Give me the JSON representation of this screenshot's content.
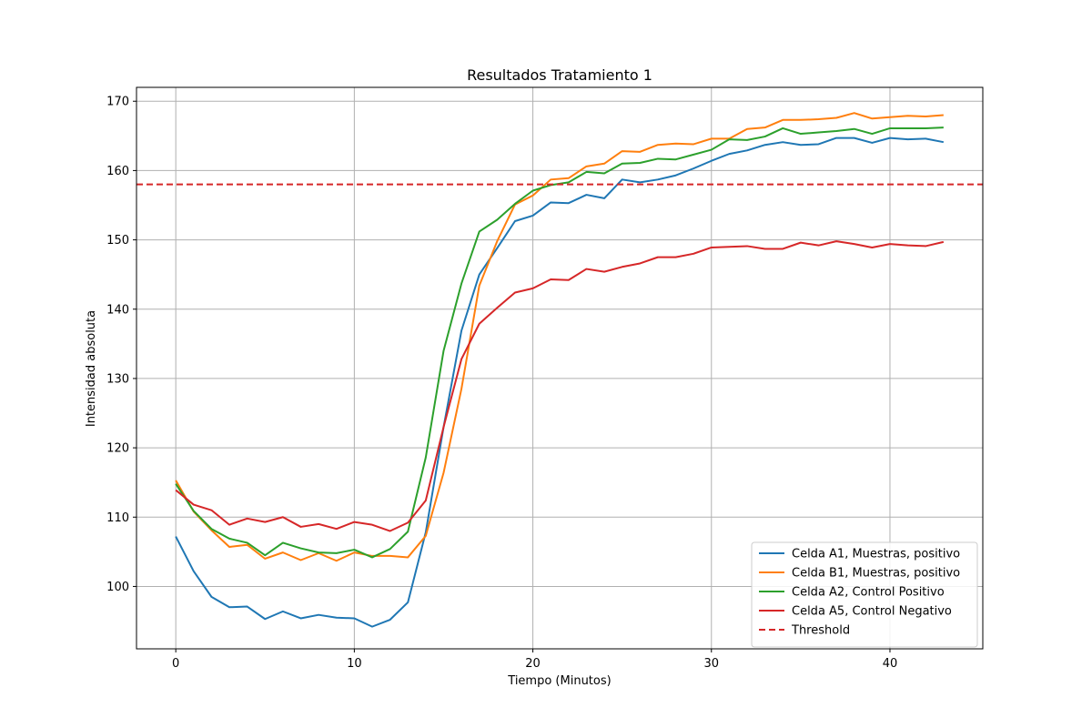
{
  "chart_data": {
    "type": "line",
    "title": "Resultados Tratamiento 1",
    "xlabel": "Tiempo (Minutos)",
    "ylabel": "Intensidad absoluta",
    "xlim": [
      -2.2,
      45.2
    ],
    "ylim": [
      91,
      172
    ],
    "xticks": [
      0,
      10,
      20,
      30,
      40
    ],
    "yticks": [
      100,
      110,
      120,
      130,
      140,
      150,
      160,
      170
    ],
    "grid": true,
    "legend_position": "lower right",
    "x": [
      0,
      1,
      2,
      3,
      4,
      5,
      6,
      7,
      8,
      9,
      10,
      11,
      12,
      13,
      14,
      15,
      16,
      17,
      18,
      19,
      20,
      21,
      22,
      23,
      24,
      25,
      26,
      27,
      28,
      29,
      30,
      31,
      32,
      33,
      34,
      35,
      36,
      37,
      38,
      39,
      40,
      41,
      42,
      43
    ],
    "series": [
      {
        "name": "Celda A1, Muestras, positivo",
        "color": "#1f77b4",
        "style": "solid",
        "values": [
          107.2,
          102.2,
          98.5,
          97.0,
          97.1,
          95.3,
          96.4,
          95.4,
          95.9,
          95.5,
          95.4,
          94.2,
          95.2,
          97.7,
          107.8,
          123.0,
          136.9,
          145.0,
          148.8,
          152.7,
          153.5,
          155.4,
          155.3,
          156.5,
          156.0,
          158.7,
          158.3,
          158.7,
          159.3,
          160.3,
          161.4,
          162.4,
          162.9,
          163.7,
          164.1,
          163.7,
          163.8,
          164.7,
          164.7,
          164.0,
          164.7,
          164.5,
          164.6,
          164.1
        ]
      },
      {
        "name": "Celda B1, Muestras, positivo",
        "color": "#ff7f0e",
        "style": "solid",
        "values": [
          115.3,
          110.8,
          108.1,
          105.7,
          106.0,
          104.0,
          104.9,
          103.8,
          104.8,
          103.7,
          104.9,
          104.4,
          104.4,
          104.2,
          107.3,
          116.4,
          128.5,
          143.4,
          149.8,
          155.1,
          156.4,
          158.7,
          158.9,
          160.6,
          161.0,
          162.8,
          162.7,
          163.7,
          163.9,
          163.8,
          164.6,
          164.6,
          166.0,
          166.2,
          167.3,
          167.3,
          167.4,
          167.6,
          168.3,
          167.5,
          167.7,
          167.9,
          167.8,
          168.0
        ]
      },
      {
        "name": "Celda A2, Control Positivo",
        "color": "#2ca02c",
        "style": "solid",
        "values": [
          114.8,
          110.9,
          108.3,
          106.9,
          106.3,
          104.5,
          106.3,
          105.5,
          104.9,
          104.8,
          105.3,
          104.2,
          105.4,
          107.9,
          118.6,
          134.0,
          143.7,
          151.2,
          152.9,
          155.2,
          157.1,
          157.9,
          158.3,
          159.8,
          159.6,
          161.0,
          161.1,
          161.7,
          161.6,
          162.3,
          163.0,
          164.5,
          164.4,
          164.9,
          166.1,
          165.3,
          165.5,
          165.7,
          166.0,
          165.3,
          166.1,
          166.1,
          166.1,
          166.2
        ]
      },
      {
        "name": "Celda A5, Control Negativo",
        "color": "#d62728",
        "style": "solid",
        "values": [
          113.9,
          111.8,
          111.0,
          108.9,
          109.8,
          109.3,
          110.0,
          108.6,
          109.0,
          108.3,
          109.3,
          108.9,
          108.0,
          109.2,
          112.4,
          123.0,
          132.8,
          137.9,
          140.2,
          142.4,
          143.0,
          144.3,
          144.2,
          145.8,
          145.4,
          146.1,
          146.6,
          147.5,
          147.5,
          148.0,
          148.9,
          149.0,
          149.1,
          148.7,
          148.7,
          149.6,
          149.2,
          149.8,
          149.4,
          148.9,
          149.4,
          149.2,
          149.1,
          149.7
        ]
      }
    ],
    "threshold": {
      "name": "Threshold",
      "value": 158,
      "color": "#d62728",
      "style": "dashed"
    }
  }
}
